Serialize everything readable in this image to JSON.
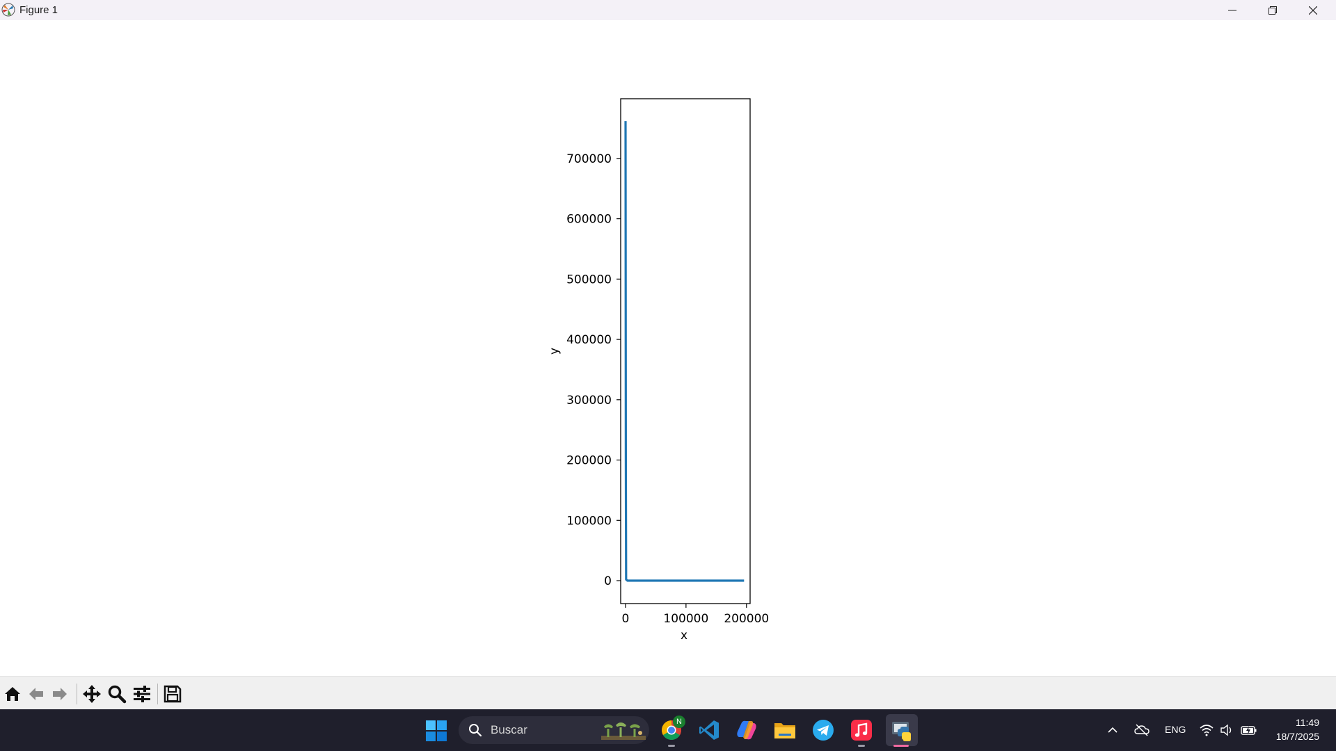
{
  "window": {
    "title": "Figure 1"
  },
  "toolbar": {
    "buttons": [
      {
        "name": "home",
        "icon": "home-icon"
      },
      {
        "name": "back",
        "icon": "arrow-left-icon"
      },
      {
        "name": "forward",
        "icon": "arrow-right-icon"
      },
      {
        "name": "pan",
        "icon": "move-icon"
      },
      {
        "name": "zoom",
        "icon": "magnifier-icon"
      },
      {
        "name": "configure-subplots",
        "icon": "sliders-icon"
      },
      {
        "name": "save",
        "icon": "floppy-disk-icon"
      }
    ]
  },
  "chart_data": {
    "type": "line",
    "title": "",
    "xlabel": "x",
    "ylabel": "y",
    "xlim": [
      -8000,
      206000
    ],
    "ylim": [
      -38000,
      799000
    ],
    "xticks": [
      0,
      100000,
      200000
    ],
    "xtick_labels": [
      "0",
      "100000",
      "200000"
    ],
    "yticks": [
      0,
      100000,
      200000,
      300000,
      400000,
      500000,
      600000,
      700000
    ],
    "ytick_labels": [
      "0",
      "100000",
      "200000",
      "300000",
      "400000",
      "500000",
      "600000",
      "700000"
    ],
    "grid": false,
    "series": [
      {
        "name": "line",
        "color": "#1f77b4",
        "x": [
          0,
          500,
          1000,
          3000,
          10000,
          50000,
          100000,
          150000,
          196000
        ],
        "y": [
          762000,
          200000,
          2000,
          100,
          0,
          0,
          0,
          0,
          0
        ]
      }
    ]
  },
  "taskbar": {
    "search_placeholder": "Buscar",
    "chrome_badge": "N",
    "apps": [
      "chrome-icon",
      "vscode-icon",
      "copilot-icon",
      "file-explorer-icon",
      "telegram-icon",
      "music-icon",
      "python-icon"
    ],
    "language": "ENG",
    "time": "11:49",
    "date": "18/7/2025",
    "accent": "#0078d4"
  }
}
